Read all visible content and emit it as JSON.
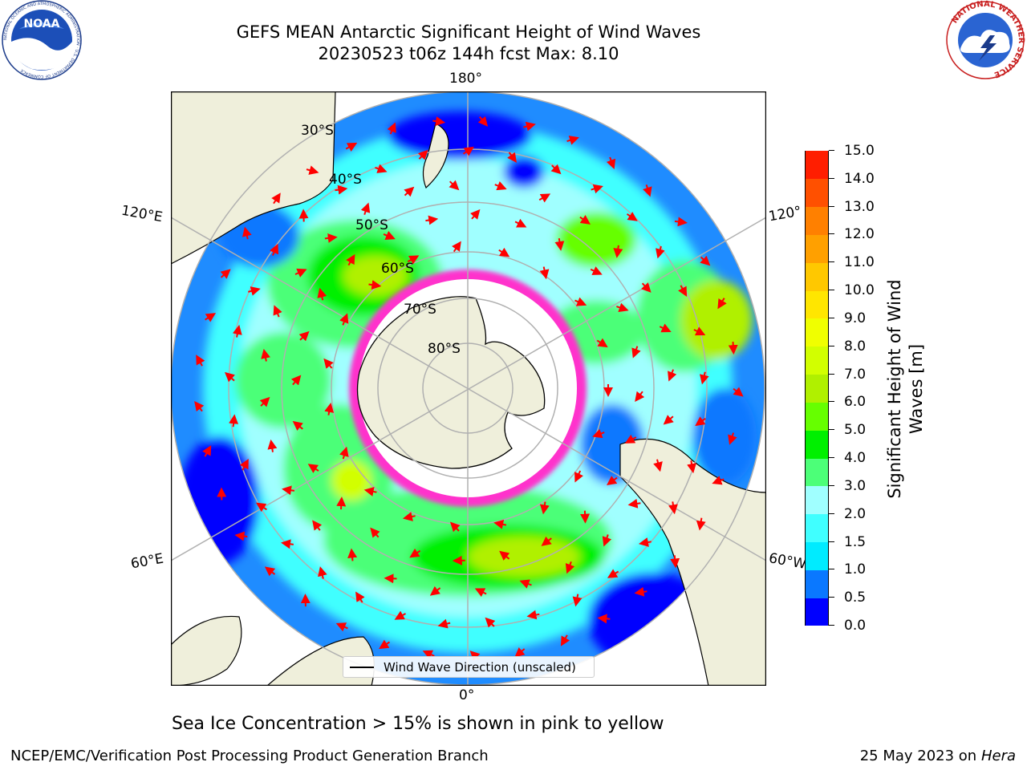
{
  "title": {
    "line1": "GEFS MEAN Antarctic Significant Height of Wind Waves",
    "line2": "20230523 t06z 144h fcst   Max: 8.10"
  },
  "map": {
    "lon_labels": [
      "180°",
      "120°E",
      "120°",
      "60°E",
      "60°W",
      "0°"
    ],
    "lat_labels": [
      "30°S",
      "40°S",
      "50°S",
      "60°S",
      "70°S",
      "80°S"
    ]
  },
  "colorbar": {
    "label": "Significant Height of Wind Waves [m]",
    "ticks": [
      "0.0",
      "0.5",
      "1.0",
      "1.5",
      "2.0",
      "3.0",
      "4.0",
      "5.0",
      "6.0",
      "7.0",
      "8.0",
      "9.0",
      "10.0",
      "11.0",
      "12.0",
      "13.0",
      "14.0",
      "15.0"
    ],
    "colors": [
      "#0000ff",
      "#0a78ff",
      "#00ebff",
      "#40ffff",
      "#a0ffff",
      "#4cff78",
      "#00f000",
      "#66ff00",
      "#b0f000",
      "#d2ff00",
      "#f0ff00",
      "#ffe600",
      "#ffc800",
      "#ffa000",
      "#ff8000",
      "#ff5000",
      "#ff1e00"
    ]
  },
  "legend": {
    "label": "Wind Wave Direction (unscaled)"
  },
  "notes": {
    "sea_ice": "Sea Ice Concentration > 15% is shown in pink to yellow"
  },
  "footer": {
    "left": "NCEP/EMC/Verification Post Processing Product Generation Branch",
    "date": "25 May 2023 on",
    "machine": "Hera"
  },
  "logos": {
    "left": {
      "text": "NOAA",
      "ring_text": "NATIONAL OCEANIC AND ATMOSPHERIC ADMINISTRATION · U.S. DEPARTMENT OF COMMERCE"
    },
    "right": {
      "ring_text": "NATIONAL WEATHER SERVICE"
    }
  }
}
